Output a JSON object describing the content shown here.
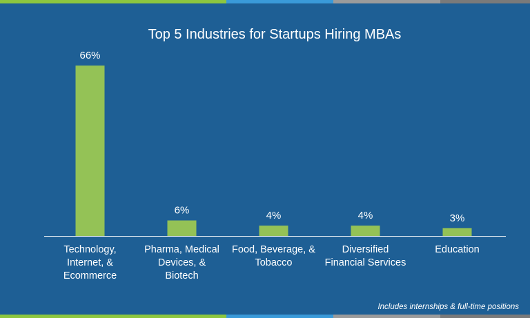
{
  "colors": {
    "background": "#1e5f95",
    "bar": "#94c256",
    "axis": "#ffffff",
    "stripe": [
      "#8dc63f",
      "#3a9ad9",
      "#9b9b9b",
      "#8dc63f",
      "#3a9ad9",
      "#9b9b9b"
    ]
  },
  "chart_data": {
    "type": "bar",
    "title": "Top 5 Industries for Startups Hiring MBAs",
    "categories": [
      [
        "Technology,",
        "Internet, &",
        "Ecommerce"
      ],
      [
        "Pharma, Medical",
        "Devices, &",
        "Biotech"
      ],
      [
        "Food, Beverage, &",
        "Tobacco"
      ],
      [
        "Diversified",
        "Financial Services"
      ],
      [
        "Education"
      ]
    ],
    "values": [
      66,
      6,
      4,
      4,
      3
    ],
    "value_labels": [
      "66%",
      "6%",
      "4%",
      "4%",
      "3%"
    ],
    "ylim": [
      0,
      66
    ],
    "xlabel": "",
    "ylabel": ""
  },
  "footnote": "Includes internships & full-time positions"
}
